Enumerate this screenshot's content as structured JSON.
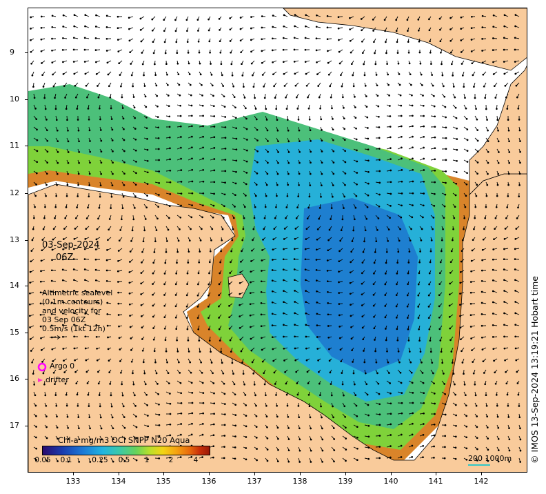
{
  "map": {
    "date_label": "03-Sep-2024",
    "time_label": "06Z",
    "legend_lines": [
      "Altimetric sealevel",
      "(0.1m contours)",
      "and velocity for",
      "03 Sep 06Z",
      "0.5m/s (1kt 12h)"
    ],
    "argo_label": "Argo 0",
    "drifter_label": "drifter",
    "credit": "© IMOS 13-Sep-2024 13:19:21 Hobart time",
    "colorbar_title": "Chl-a mg/m3 OCi SNPP N20 Aqua",
    "colorbar_ticks": [
      "0.05",
      "0.1",
      "0.25",
      "0.5",
      "1",
      "2",
      "4"
    ],
    "scale_label": "200  1000m",
    "lat_labels": [
      "9",
      "10",
      "11",
      "12",
      "13",
      "14",
      "15",
      "16",
      "17"
    ],
    "lon_labels": [
      "133",
      "134",
      "135",
      "136",
      "137",
      "138",
      "139",
      "140",
      "141",
      "142"
    ],
    "colors": {
      "land": "#f9cb9b",
      "ocean_open": "#ffffff",
      "argo": "#ff00ff",
      "drifter": "#ff33cc",
      "scale": "#2fc7c7"
    }
  }
}
